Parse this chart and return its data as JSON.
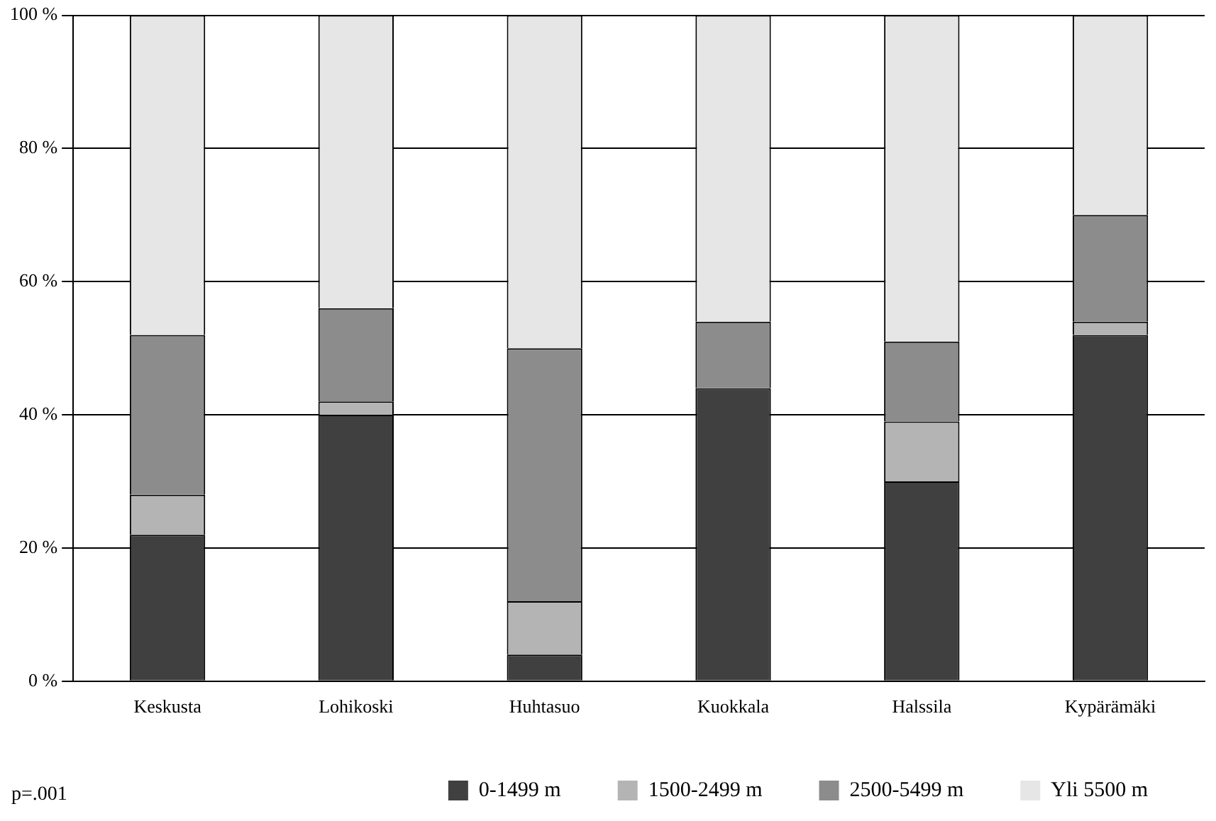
{
  "chart_data": {
    "type": "bar",
    "stacked": true,
    "categories": [
      "Keskusta",
      "Lohikoski",
      "Huhtasuo",
      "Kuokkala",
      "Halssila",
      "Kypärämäki"
    ],
    "series": [
      {
        "name": "0-1499 m",
        "color": "#404040",
        "values": [
          22,
          40,
          4,
          44,
          30,
          52
        ]
      },
      {
        "name": "1500-2499 m",
        "color": "#b4b4b4",
        "values": [
          6,
          2,
          8,
          0,
          9,
          2
        ]
      },
      {
        "name": "2500-5499 m",
        "color": "#8c8c8c",
        "values": [
          24,
          14,
          38,
          10,
          12,
          16
        ]
      },
      {
        "name": "Yli 5500 m",
        "color": "#e6e6e6",
        "values": [
          48,
          44,
          50,
          46,
          49,
          30
        ]
      }
    ],
    "ylim": [
      0,
      100
    ],
    "yticks": [
      {
        "value": 0,
        "label": "0 %"
      },
      {
        "value": 20,
        "label": "20 %"
      },
      {
        "value": 40,
        "label": "40 %"
      },
      {
        "value": 60,
        "label": "60 %"
      },
      {
        "value": 80,
        "label": "80 %"
      },
      {
        "value": 100,
        "label": "100 %"
      }
    ],
    "grid": "y",
    "legend": "bottom",
    "annotations": [
      "p=.001"
    ]
  }
}
